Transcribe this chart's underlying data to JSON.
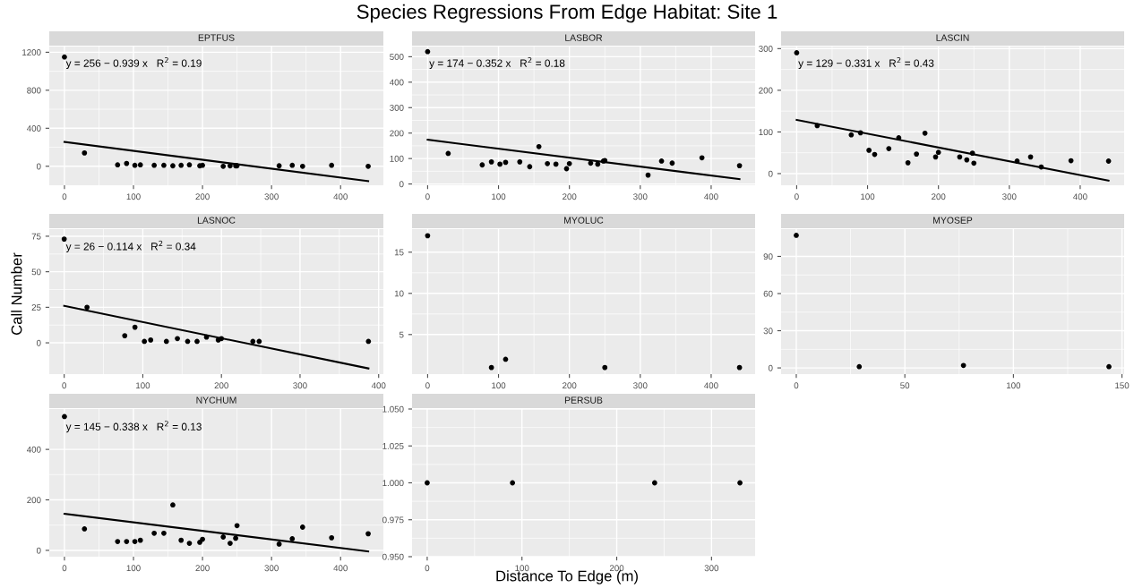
{
  "chart_data": [
    {
      "type": "other",
      "title": "Species Regressions From Edge Habitat: Site 1",
      "xlabel": "Distance To Edge (m)",
      "ylabel": "Call Number"
    },
    {
      "type": "scatter",
      "title": "EPTFUS",
      "grid": true,
      "xlim": [
        -22,
        462
      ],
      "ylim": [
        -200,
        1260
      ],
      "xticks": [
        0,
        100,
        200,
        300,
        400
      ],
      "yticks": [
        0,
        400,
        800,
        1200
      ],
      "annotations": [
        "y = 256 − 0.939 x   R$^{2}$ = 0.19"
      ],
      "series": [
        {
          "type": "scatter",
          "marker": "circle",
          "color": "#000000",
          "x": [
            0,
            29,
            77,
            90,
            102,
            110,
            130,
            144,
            157,
            169,
            181,
            196,
            200,
            230,
            240,
            248,
            250,
            311,
            330,
            345,
            387,
            440
          ],
          "values": [
            1150,
            140,
            15,
            30,
            10,
            15,
            10,
            10,
            5,
            10,
            15,
            5,
            10,
            0,
            5,
            5,
            5,
            5,
            10,
            0,
            10,
            0
          ]
        },
        {
          "type": "line",
          "color": "#000000",
          "x": [
            0,
            440
          ],
          "values": [
            256,
            -157
          ]
        }
      ]
    },
    {
      "type": "scatter",
      "title": "LASBOR",
      "grid": true,
      "xlim": [
        -22,
        462
      ],
      "ylim": [
        -5,
        540
      ],
      "xticks": [
        0,
        100,
        200,
        300,
        400
      ],
      "yticks": [
        0,
        100,
        200,
        300,
        400,
        500
      ],
      "annotations": [
        "y = 174 − 0.352 x   R$^{2}$ = 0.18"
      ],
      "series": [
        {
          "type": "scatter",
          "marker": "circle",
          "color": "#000000",
          "x": [
            0,
            29,
            77,
            90,
            102,
            110,
            130,
            144,
            157,
            169,
            181,
            196,
            200,
            230,
            240,
            248,
            250,
            311,
            330,
            345,
            387,
            440
          ],
          "values": [
            520,
            120,
            75,
            87,
            78,
            85,
            87,
            68,
            147,
            80,
            78,
            60,
            80,
            82,
            78,
            90,
            92,
            35,
            90,
            82,
            103,
            72
          ]
        },
        {
          "type": "line",
          "color": "#000000",
          "x": [
            0,
            440
          ],
          "values": [
            174,
            19
          ]
        }
      ]
    },
    {
      "type": "scatter",
      "title": "LASCIN",
      "grid": true,
      "xlim": [
        -22,
        462
      ],
      "ylim": [
        -28,
        305
      ],
      "xticks": [
        0,
        100,
        200,
        300,
        400
      ],
      "yticks": [
        0,
        100,
        200,
        300
      ],
      "annotations": [
        "y = 129 − 0.331 x   R$^{2}$ = 0.43"
      ],
      "series": [
        {
          "type": "scatter",
          "marker": "circle",
          "color": "#000000",
          "x": [
            0,
            29,
            77,
            90,
            102,
            110,
            130,
            144,
            157,
            169,
            181,
            196,
            200,
            230,
            240,
            248,
            250,
            311,
            330,
            345,
            387,
            440
          ],
          "values": [
            290,
            115,
            93,
            98,
            56,
            46,
            60,
            86,
            26,
            47,
            97,
            40,
            51,
            40,
            33,
            49,
            25,
            30,
            40,
            16,
            31,
            30
          ]
        },
        {
          "type": "line",
          "color": "#000000",
          "x": [
            0,
            440
          ],
          "values": [
            129,
            -17
          ]
        }
      ]
    },
    {
      "type": "scatter",
      "title": "LASNOC",
      "grid": true,
      "xlim": [
        -19,
        406
      ],
      "ylim": [
        -22,
        80
      ],
      "xticks": [
        0,
        100,
        200,
        300,
        400
      ],
      "yticks": [
        0,
        25,
        50,
        75
      ],
      "annotations": [
        "y = 26 − 0.114 x   R$^{2}$ = 0.34"
      ],
      "series": [
        {
          "type": "scatter",
          "marker": "circle",
          "color": "#000000",
          "x": [
            0,
            29,
            77,
            90,
            102,
            110,
            130,
            144,
            157,
            169,
            181,
            196,
            200,
            240,
            248,
            387
          ],
          "values": [
            73,
            25,
            5,
            11,
            1,
            2,
            1,
            3,
            1,
            1,
            4,
            2,
            3,
            1,
            1,
            1
          ]
        },
        {
          "type": "line",
          "color": "#000000",
          "x": [
            0,
            387
          ],
          "values": [
            26,
            -18
          ]
        }
      ]
    },
    {
      "type": "scatter",
      "title": "MYOLUC",
      "marker": "circle",
      "grid": true,
      "xlim": [
        -22,
        462
      ],
      "ylim": [
        0.2,
        17.8
      ],
      "xticks": [
        0,
        100,
        200,
        300,
        400
      ],
      "yticks": [
        5,
        10,
        15
      ],
      "series": [
        {
          "type": "scatter",
          "color": "#000000",
          "x": [
            0,
            90,
            110,
            250,
            440
          ],
          "values": [
            17,
            1,
            2,
            1,
            1
          ]
        }
      ]
    },
    {
      "type": "scatter",
      "title": "MYOSEP",
      "marker": "circle",
      "grid": true,
      "xlim": [
        -7,
        151
      ],
      "ylim": [
        -5,
        112
      ],
      "xticks": [
        0,
        50,
        100,
        150
      ],
      "yticks": [
        0,
        30,
        60,
        90
      ],
      "series": [
        {
          "type": "scatter",
          "color": "#000000",
          "x": [
            0,
            29,
            77,
            144
          ],
          "values": [
            107,
            1,
            2,
            1
          ]
        }
      ]
    },
    {
      "type": "scatter",
      "title": "NYCHUM",
      "grid": true,
      "xlim": [
        -22,
        462
      ],
      "ylim": [
        -25,
        560
      ],
      "xticks": [
        0,
        100,
        200,
        300,
        400
      ],
      "yticks": [
        0,
        200,
        400
      ],
      "annotations": [
        "y = 145 − 0.338 x   R$^{2}$ = 0.13"
      ],
      "series": [
        {
          "type": "scatter",
          "marker": "circle",
          "color": "#000000",
          "x": [
            0,
            29,
            77,
            90,
            102,
            110,
            130,
            144,
            157,
            169,
            181,
            196,
            200,
            230,
            240,
            248,
            250,
            311,
            330,
            345,
            387,
            440
          ],
          "values": [
            530,
            85,
            35,
            35,
            35,
            40,
            68,
            68,
            180,
            40,
            28,
            32,
            44,
            53,
            28,
            48,
            98,
            25,
            46,
            92,
            50,
            66
          ]
        },
        {
          "type": "line",
          "color": "#000000",
          "x": [
            0,
            440
          ],
          "values": [
            145,
            -4
          ]
        }
      ]
    },
    {
      "type": "scatter",
      "title": "PERSUB",
      "marker": "circle",
      "grid": true,
      "xlim": [
        -16,
        346
      ],
      "ylim": [
        0.95,
        1.05
      ],
      "xticks": [
        0,
        100,
        200,
        300
      ],
      "yticks": [
        {
          "value": 0.95,
          "label": "0.950"
        },
        {
          "value": 0.975,
          "label": "0.975"
        },
        {
          "value": 1.0,
          "label": "1.000"
        },
        {
          "value": 1.025,
          "label": "1.025"
        },
        {
          "value": 1.05,
          "label": "1.050"
        }
      ],
      "series": [
        {
          "type": "scatter",
          "color": "#000000",
          "x": [
            0,
            90,
            240,
            330
          ],
          "values": [
            1.0,
            1.0,
            1.0,
            1.0
          ]
        }
      ]
    }
  ]
}
